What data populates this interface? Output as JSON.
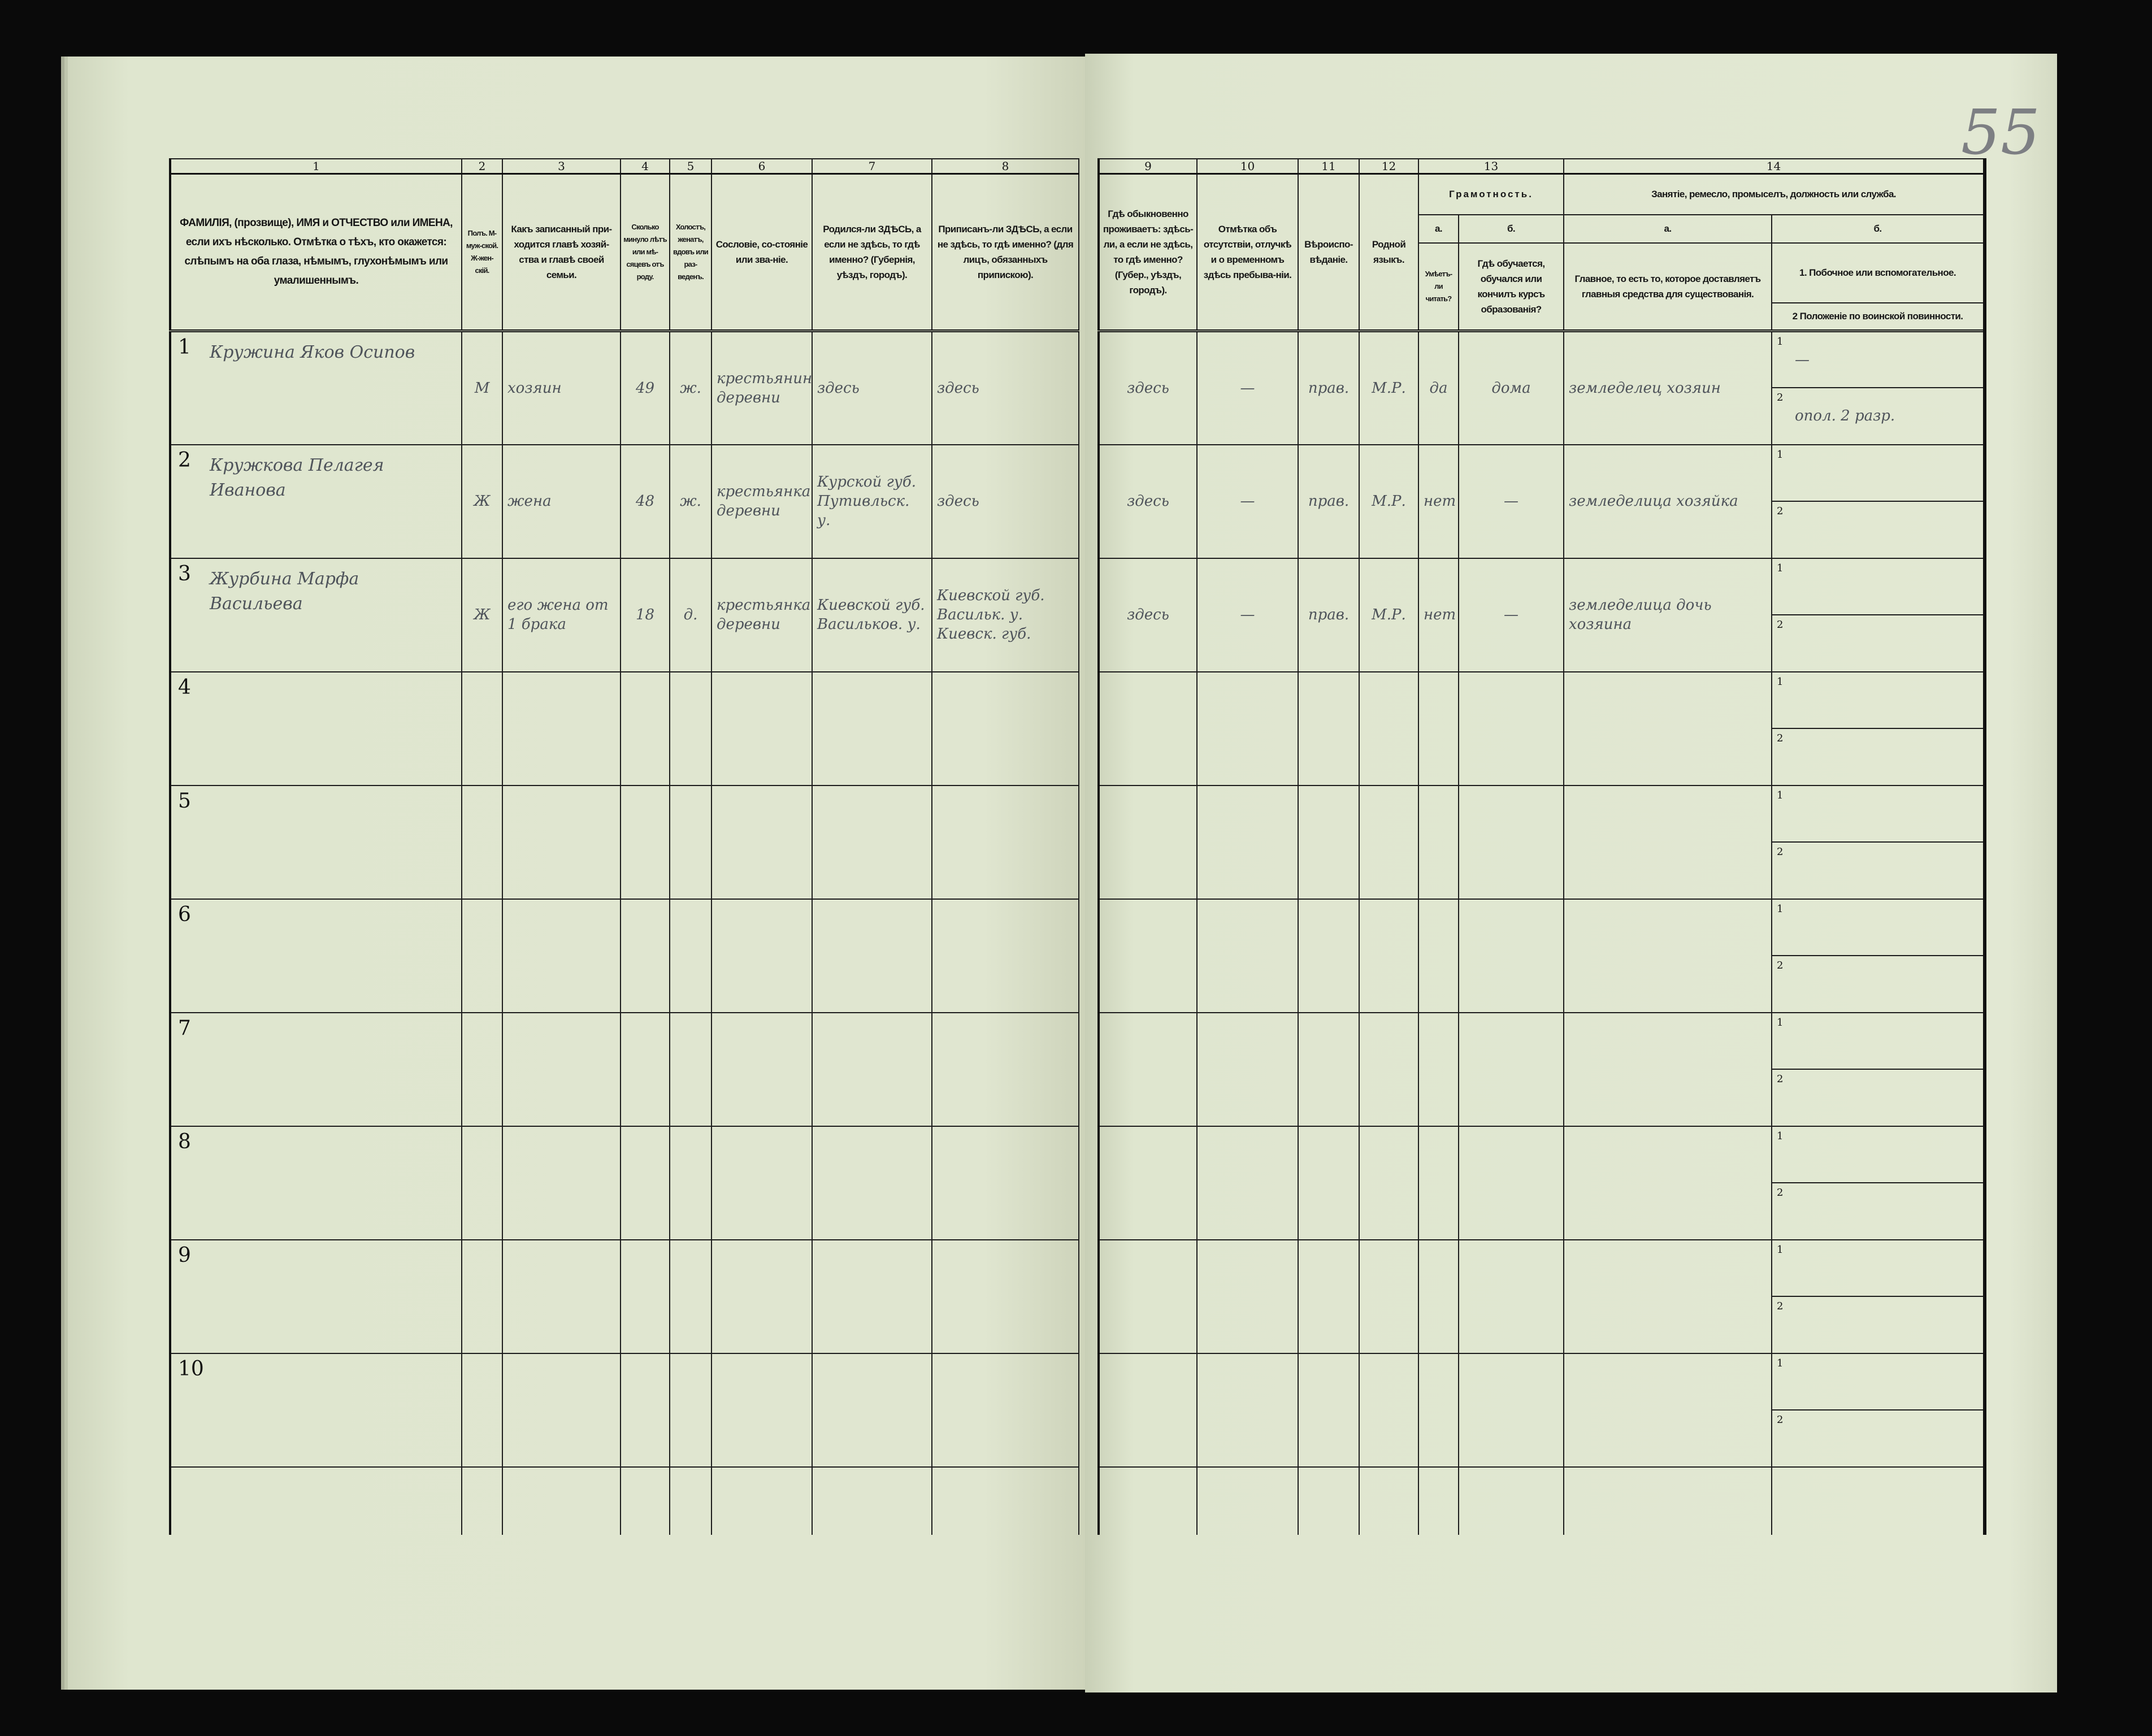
{
  "sheet_number": "55",
  "left_header": {
    "columns": [
      {
        "num": "1",
        "text": "ФАМИЛІЯ, (прозвище), ИМЯ и ОТЧЕСТВО или ИМЕНА, если ихъ нѣсколько. Отмѣтка о тѣхъ, кто окажется: слѣпымъ на оба глаза, нѣмымъ, глухонѣмымъ или умалишеннымъ."
      },
      {
        "num": "2",
        "text": "Полъ. М-муж-ской. Ж-жен-скій."
      },
      {
        "num": "3",
        "text": "Какъ записанный при-ходится главѣ хозяй-ства и главѣ своей семьи."
      },
      {
        "num": "4",
        "text": "Сколько минуло лѣтъ или мѣ-сяцевъ отъ роду."
      },
      {
        "num": "5",
        "text": "Холостъ, женатъ, вдовъ или раз-веденъ."
      },
      {
        "num": "6",
        "text": "Сословіе, со-стояніе или зва-ніе."
      },
      {
        "num": "7",
        "text": "Родился-ли ЗДѢСЬ, а если не здѣсь, то гдѣ именно? (Губернія, уѣздъ, городъ)."
      },
      {
        "num": "8",
        "text": "Приписанъ-ли ЗДѢСЬ, а если не здѣсь, то гдѣ именно? (для лицъ, обязанныхъ припискою)."
      }
    ]
  },
  "right_header": {
    "columns": [
      {
        "num": "9",
        "text": "Гдѣ обыкновенно проживаетъ: здѣсь-ли, а если не здѣсь, то гдѣ именно? (Губер., уѣздъ, городъ)."
      },
      {
        "num": "10",
        "text": "Отмѣтка объ отсутствіи, отлучкѣ и о временномъ здѣсь пребыва-ніи."
      },
      {
        "num": "11",
        "text": "Вѣроиспо-вѣданіе."
      },
      {
        "num": "12",
        "text": "Родной языкъ."
      }
    ],
    "literacy": {
      "num": "13",
      "title": "Грамотность.",
      "a_label": "а.",
      "a_text": "Умѣетъ-ли читать?",
      "b_label": "б.",
      "b_text": "Гдѣ обучается, обучался или кончилъ курсъ образованія?"
    },
    "occupation": {
      "num": "14",
      "title": "Занятіе, ремесло, промыселъ, должность или служба.",
      "a_label": "а.",
      "a_text": "Главное, то есть то, которое доставляетъ главныя средства для существованія.",
      "b_label": "б.",
      "b1_text": "1. Побочное или вспомогательное.",
      "b2_text": "2 Положеніе по воинской повинности."
    }
  },
  "sub_labels": [
    "1",
    "2"
  ],
  "rows": [
    {
      "n": "1",
      "name": "Кружина Яков Осипов",
      "sex": "М",
      "relation": "хозяин",
      "age": "49",
      "marital": "ж.",
      "estate": "крестьянин деревни",
      "born": "здесь",
      "registered": "здесь",
      "residence": "здесь",
      "absence": "—",
      "religion": "прав.",
      "language": "М.Р.",
      "can_read": "да",
      "studied": "дома",
      "occupation_main": "земледелец хозяин",
      "occupation_side": "—",
      "military": "опол. 2 разр."
    },
    {
      "n": "2",
      "name": "Кружкова Пелагея Иванова",
      "sex": "Ж",
      "relation": "жена",
      "age": "48",
      "marital": "ж.",
      "estate": "крестьянка деревни",
      "born": "Курской губ. Путивльск. у.",
      "registered": "здесь",
      "residence": "здесь",
      "absence": "—",
      "religion": "прав.",
      "language": "М.Р.",
      "can_read": "нет",
      "studied": "—",
      "occupation_main": "земледелица хозяйка",
      "occupation_side": "",
      "military": ""
    },
    {
      "n": "3",
      "name": "Журбина Марфа Васильева",
      "sex": "Ж",
      "relation": "его жена от 1 брака",
      "age": "18",
      "marital": "д.",
      "estate": "крестьянка деревни",
      "born": "Киевской губ. Васильков. у.",
      "registered": "Киевской губ. Васильк. у. Киевск. губ.",
      "residence": "здесь",
      "absence": "—",
      "religion": "прав.",
      "language": "М.Р.",
      "can_read": "нет",
      "studied": "—",
      "occupation_main": "земледелица дочь хозяина",
      "occupation_side": "",
      "military": ""
    },
    {
      "n": "4"
    },
    {
      "n": "5"
    },
    {
      "n": "6"
    },
    {
      "n": "7"
    },
    {
      "n": "8"
    },
    {
      "n": "9"
    },
    {
      "n": "10"
    }
  ]
}
